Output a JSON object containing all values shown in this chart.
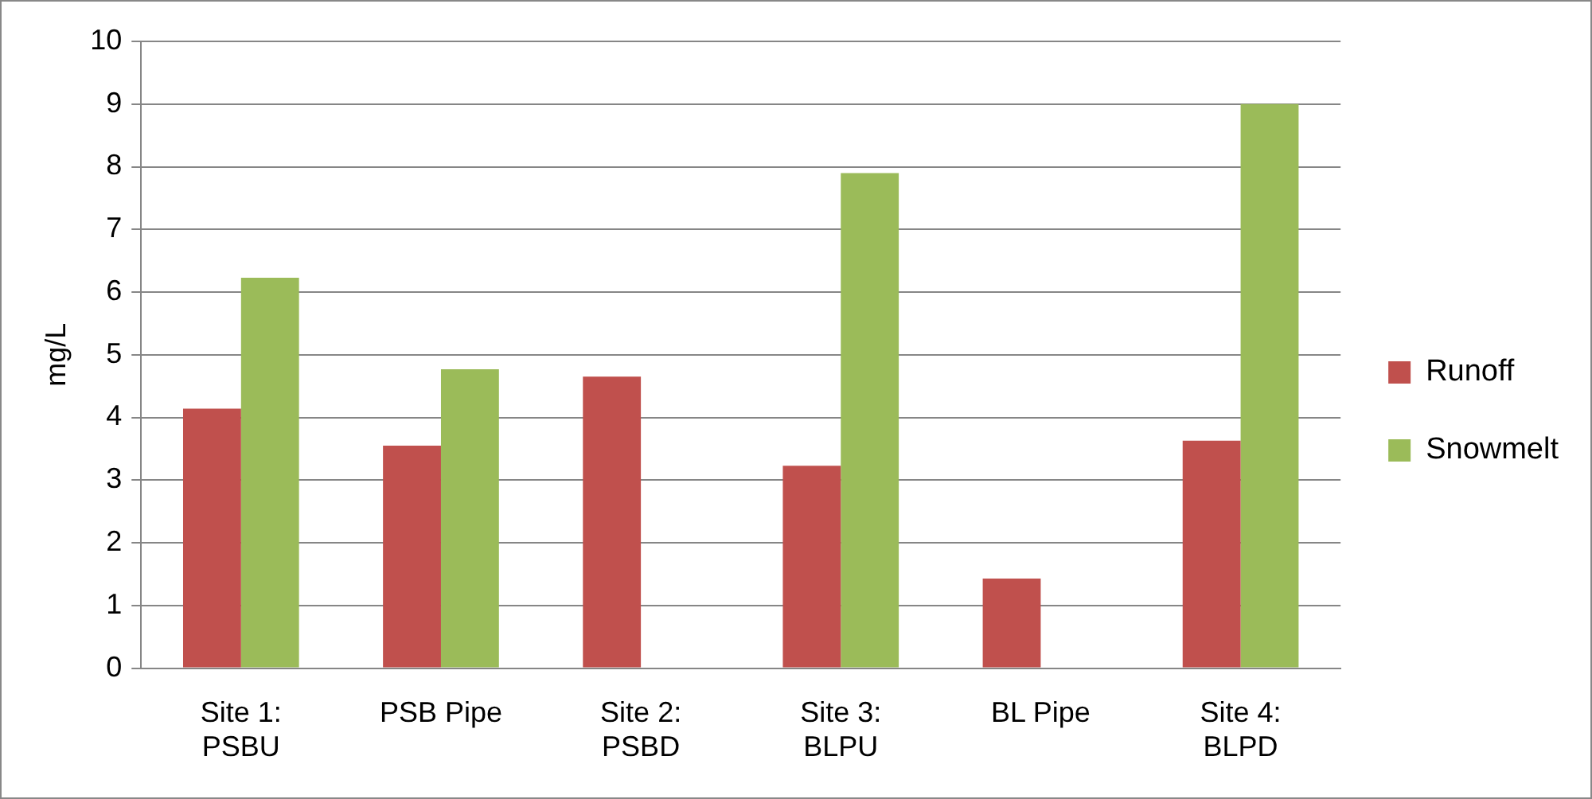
{
  "chart_data": {
    "type": "bar",
    "ylabel": "mg/L",
    "categories": [
      "Site 1: PSBU",
      "PSB Pipe",
      "Site 2: PSBD",
      "Site 3: BLPU",
      "BL Pipe",
      "Site 4: BLPD"
    ],
    "series": [
      {
        "name": "Runoff",
        "color": "#c0504d",
        "values": [
          4.14,
          3.55,
          4.65,
          3.23,
          1.43,
          3.63
        ]
      },
      {
        "name": "Snowmelt",
        "color": "#9bbb59",
        "values": [
          6.23,
          4.77,
          null,
          7.9,
          null,
          9.0
        ]
      }
    ],
    "ylim": [
      0,
      10
    ],
    "yticks": [
      0,
      1,
      2,
      3,
      4,
      5,
      6,
      7,
      8,
      9,
      10
    ],
    "grid": "y",
    "legend": "right"
  }
}
